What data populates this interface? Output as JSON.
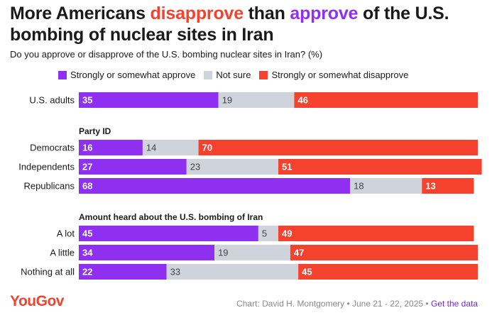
{
  "title": {
    "part1": "More Americans ",
    "part2": "disapprove",
    "part3": " than ",
    "part4": "approve",
    "part5": " of the U.S. bombing of nuclear sites in Iran"
  },
  "subtitle": "Do you approve or disapprove of the U.S. bombing nuclear sites in Iran? (%)",
  "colors": {
    "approve": "#8f2ff0",
    "not_sure": "#cfd3db",
    "disapprove": "#f5422e",
    "brand": "#f5422e"
  },
  "footer": {
    "logo": "YouGov",
    "credit": "Chart: David H. Montgomery • June 21 - 22, 2025 • ",
    "link": "Get the data"
  },
  "chart_data": {
    "type": "bar",
    "orientation": "horizontal",
    "stacked": true,
    "xlim": [
      0,
      100
    ],
    "legend": [
      "Strongly or somewhat approve",
      "Not sure",
      "Strongly or somewhat disapprove"
    ],
    "groups": [
      {
        "heading": "",
        "rows": [
          {
            "label": "U.S. adults",
            "values": [
              35,
              19,
              46
            ]
          }
        ]
      },
      {
        "heading": "Party ID",
        "rows": [
          {
            "label": "Democrats",
            "values": [
              16,
              14,
              70
            ]
          },
          {
            "label": "Independents",
            "values": [
              27,
              23,
              51
            ]
          },
          {
            "label": "Republicans",
            "values": [
              68,
              18,
              13
            ]
          }
        ]
      },
      {
        "heading": "Amount heard about the U.S. bombing of Iran",
        "rows": [
          {
            "label": "A lot",
            "values": [
              45,
              5,
              49
            ]
          },
          {
            "label": "A little",
            "values": [
              34,
              19,
              47
            ]
          },
          {
            "label": "Nothing at all",
            "values": [
              22,
              33,
              45
            ]
          }
        ]
      }
    ]
  }
}
